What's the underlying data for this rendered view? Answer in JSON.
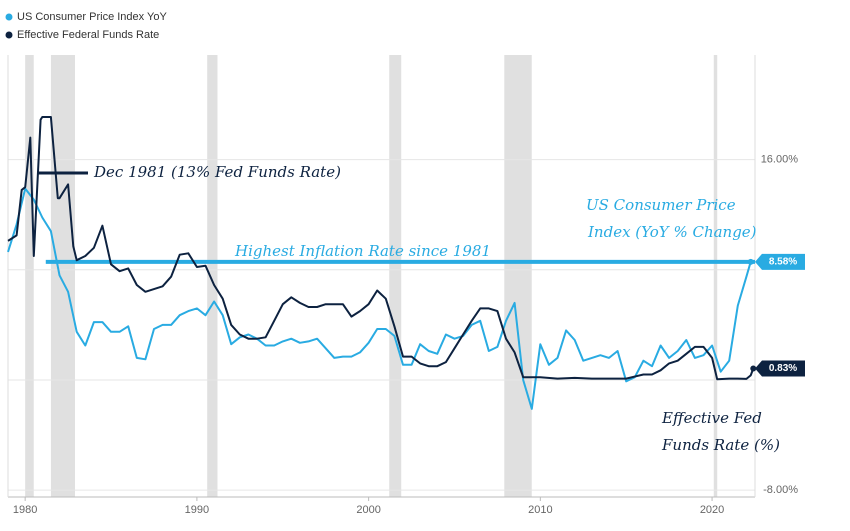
{
  "chart_data": {
    "type": "line",
    "xlim": [
      1979.0,
      2022.5
    ],
    "xticks": [
      1980,
      1990,
      2000,
      2010,
      2020
    ],
    "ylim": [
      -8.5,
      23.6
    ],
    "yticks": [
      {
        "value": 16,
        "label": "16.00%"
      },
      {
        "value": 8,
        "label": null
      },
      {
        "value": 0,
        "label": null
      },
      {
        "value": -8,
        "label": "-8.00%"
      }
    ],
    "grid": true,
    "legend": "top-left",
    "recessions": [
      [
        1980.0,
        1980.5
      ],
      [
        1981.5,
        1982.9
      ],
      [
        1990.6,
        1991.2
      ],
      [
        2001.2,
        2001.9
      ],
      [
        2007.9,
        2009.5
      ],
      [
        2020.1,
        2020.3
      ]
    ],
    "recession_color": "#e0e0e0",
    "series": [
      {
        "name": "US Consumer Price Index YoY",
        "color": "#29abe2",
        "last_label": "8.58%",
        "x": [
          1979.0,
          1979.5,
          1980.0,
          1980.5,
          1981.0,
          1981.5,
          1982.0,
          1982.5,
          1983.0,
          1983.5,
          1984.0,
          1984.5,
          1985.0,
          1985.5,
          1986.0,
          1986.5,
          1987.0,
          1987.5,
          1988.0,
          1988.5,
          1989.0,
          1989.5,
          1990.0,
          1990.5,
          1991.0,
          1991.5,
          1992.0,
          1992.5,
          1993.0,
          1993.5,
          1994.0,
          1994.5,
          1995.0,
          1995.5,
          1996.0,
          1996.5,
          1997.0,
          1997.5,
          1998.0,
          1998.5,
          1999.0,
          1999.5,
          2000.0,
          2000.5,
          2001.0,
          2001.5,
          2002.0,
          2002.5,
          2003.0,
          2003.5,
          2004.0,
          2004.5,
          2005.0,
          2005.5,
          2006.0,
          2006.5,
          2007.0,
          2007.5,
          2008.0,
          2008.5,
          2009.0,
          2009.5,
          2010.0,
          2010.5,
          2011.0,
          2011.5,
          2012.0,
          2012.5,
          2013.0,
          2013.5,
          2014.0,
          2014.5,
          2015.0,
          2015.5,
          2016.0,
          2016.5,
          2017.0,
          2017.5,
          2018.0,
          2018.5,
          2019.0,
          2019.5,
          2020.0,
          2020.5,
          2021.0,
          2021.5,
          2022.0,
          2022.25
        ],
        "values": [
          9.3,
          11.3,
          13.9,
          13.1,
          11.8,
          10.8,
          7.6,
          6.4,
          3.5,
          2.5,
          4.2,
          4.2,
          3.5,
          3.5,
          3.9,
          1.6,
          1.5,
          3.7,
          4.0,
          4.0,
          4.7,
          5.0,
          5.2,
          4.7,
          5.7,
          4.7,
          2.6,
          3.1,
          3.3,
          3.0,
          2.5,
          2.5,
          2.8,
          3.0,
          2.7,
          2.8,
          3.0,
          2.3,
          1.6,
          1.7,
          1.7,
          2.0,
          2.7,
          3.7,
          3.7,
          3.2,
          1.1,
          1.1,
          2.6,
          2.1,
          1.9,
          3.3,
          3.0,
          3.2,
          4.0,
          4.3,
          2.1,
          2.4,
          4.3,
          5.6,
          0.0,
          -2.1,
          2.6,
          1.1,
          1.6,
          3.6,
          2.9,
          1.4,
          1.6,
          1.8,
          1.6,
          2.1,
          -0.1,
          0.2,
          1.4,
          1.0,
          2.5,
          1.6,
          2.1,
          2.9,
          1.6,
          1.8,
          2.5,
          0.6,
          1.4,
          5.4,
          7.5,
          8.58
        ]
      },
      {
        "name": "Effective Federal Funds Rate",
        "color": "#0d2240",
        "last_label": "0.83%",
        "x": [
          1979.0,
          1979.5,
          1979.8,
          1980.0,
          1980.3,
          1980.5,
          1980.9,
          1981.0,
          1981.5,
          1981.9,
          1982.0,
          1982.5,
          1982.8,
          1983.0,
          1983.5,
          1984.0,
          1984.5,
          1985.0,
          1985.5,
          1986.0,
          1986.5,
          1987.0,
          1987.5,
          1988.0,
          1988.5,
          1989.0,
          1989.5,
          1990.0,
          1990.5,
          1991.0,
          1991.5,
          1992.0,
          1992.5,
          1993.0,
          1993.5,
          1994.0,
          1994.5,
          1995.0,
          1995.5,
          1996.0,
          1996.5,
          1997.0,
          1997.5,
          1998.0,
          1998.5,
          1999.0,
          1999.5,
          2000.0,
          2000.5,
          2001.0,
          2001.5,
          2002.0,
          2002.5,
          2003.0,
          2003.5,
          2004.0,
          2004.5,
          2005.0,
          2005.5,
          2006.0,
          2006.5,
          2007.0,
          2007.5,
          2008.0,
          2008.5,
          2009.0,
          2010.0,
          2011.0,
          2012.0,
          2013.0,
          2014.0,
          2015.0,
          2016.0,
          2016.5,
          2017.0,
          2017.5,
          2018.0,
          2018.5,
          2019.0,
          2019.5,
          2020.0,
          2020.3,
          2021.0,
          2021.5,
          2022.0,
          2022.25,
          2022.4
        ],
        "values": [
          10.1,
          10.5,
          13.8,
          14.0,
          17.6,
          9.0,
          18.9,
          19.1,
          19.1,
          13.2,
          13.2,
          14.2,
          9.7,
          8.7,
          9.0,
          9.6,
          11.2,
          8.4,
          7.9,
          8.1,
          6.9,
          6.4,
          6.6,
          6.8,
          7.5,
          9.1,
          9.2,
          8.2,
          8.3,
          6.9,
          5.9,
          4.0,
          3.3,
          3.0,
          3.0,
          3.1,
          4.3,
          5.5,
          6.0,
          5.6,
          5.3,
          5.3,
          5.5,
          5.5,
          5.5,
          4.6,
          5.0,
          5.5,
          6.5,
          5.9,
          3.9,
          1.7,
          1.7,
          1.2,
          1.0,
          1.0,
          1.3,
          2.3,
          3.3,
          4.3,
          5.2,
          5.2,
          5.0,
          3.0,
          2.0,
          0.2,
          0.2,
          0.1,
          0.15,
          0.1,
          0.1,
          0.1,
          0.4,
          0.4,
          0.7,
          1.2,
          1.4,
          1.9,
          2.4,
          2.4,
          1.6,
          0.05,
          0.1,
          0.1,
          0.08,
          0.33,
          0.83
        ]
      }
    ],
    "reference_line": {
      "value": 8.58,
      "x_start": 1981.2,
      "color": "#29abe2"
    },
    "annotations": {
      "dec_1981": "Dec 1981 (13% Fed Funds Rate)",
      "highest": "Highest Inflation Rate since 1981",
      "cpi_label": [
        "US Consumer Price",
        "Index (YoY % Change)"
      ],
      "fed_label": [
        "Effective Fed",
        "Funds Rate (%)"
      ]
    }
  }
}
